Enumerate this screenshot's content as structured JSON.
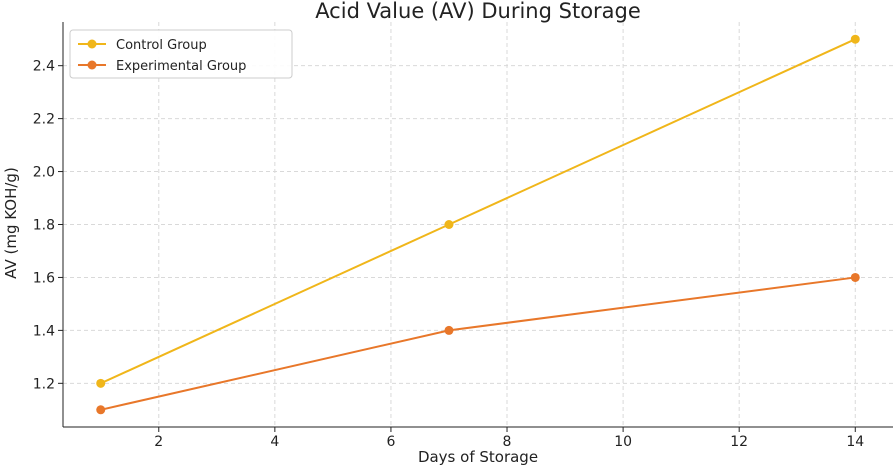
{
  "chart_data": {
    "type": "line",
    "title": "Acid Value (AV) During Storage",
    "xlabel": "Days of Storage",
    "ylabel": "AV (mg KOH/g)",
    "xlim": [
      0.35,
      14.65
    ],
    "ylim": [
      1.035,
      2.565
    ],
    "xticks": [
      2,
      4,
      6,
      8,
      10,
      12,
      14
    ],
    "yticks": [
      1.2,
      1.4,
      1.6,
      1.8,
      2.0,
      2.2,
      2.4
    ],
    "grid": true,
    "legend_position": "top-left",
    "x": [
      1,
      7,
      14
    ],
    "series": [
      {
        "name": "Control Group",
        "values": [
          1.2,
          1.8,
          2.5
        ],
        "color": "#f0b61a"
      },
      {
        "name": "Experimental Group",
        "values": [
          1.1,
          1.4,
          1.6
        ],
        "color": "#e8772a"
      }
    ]
  }
}
